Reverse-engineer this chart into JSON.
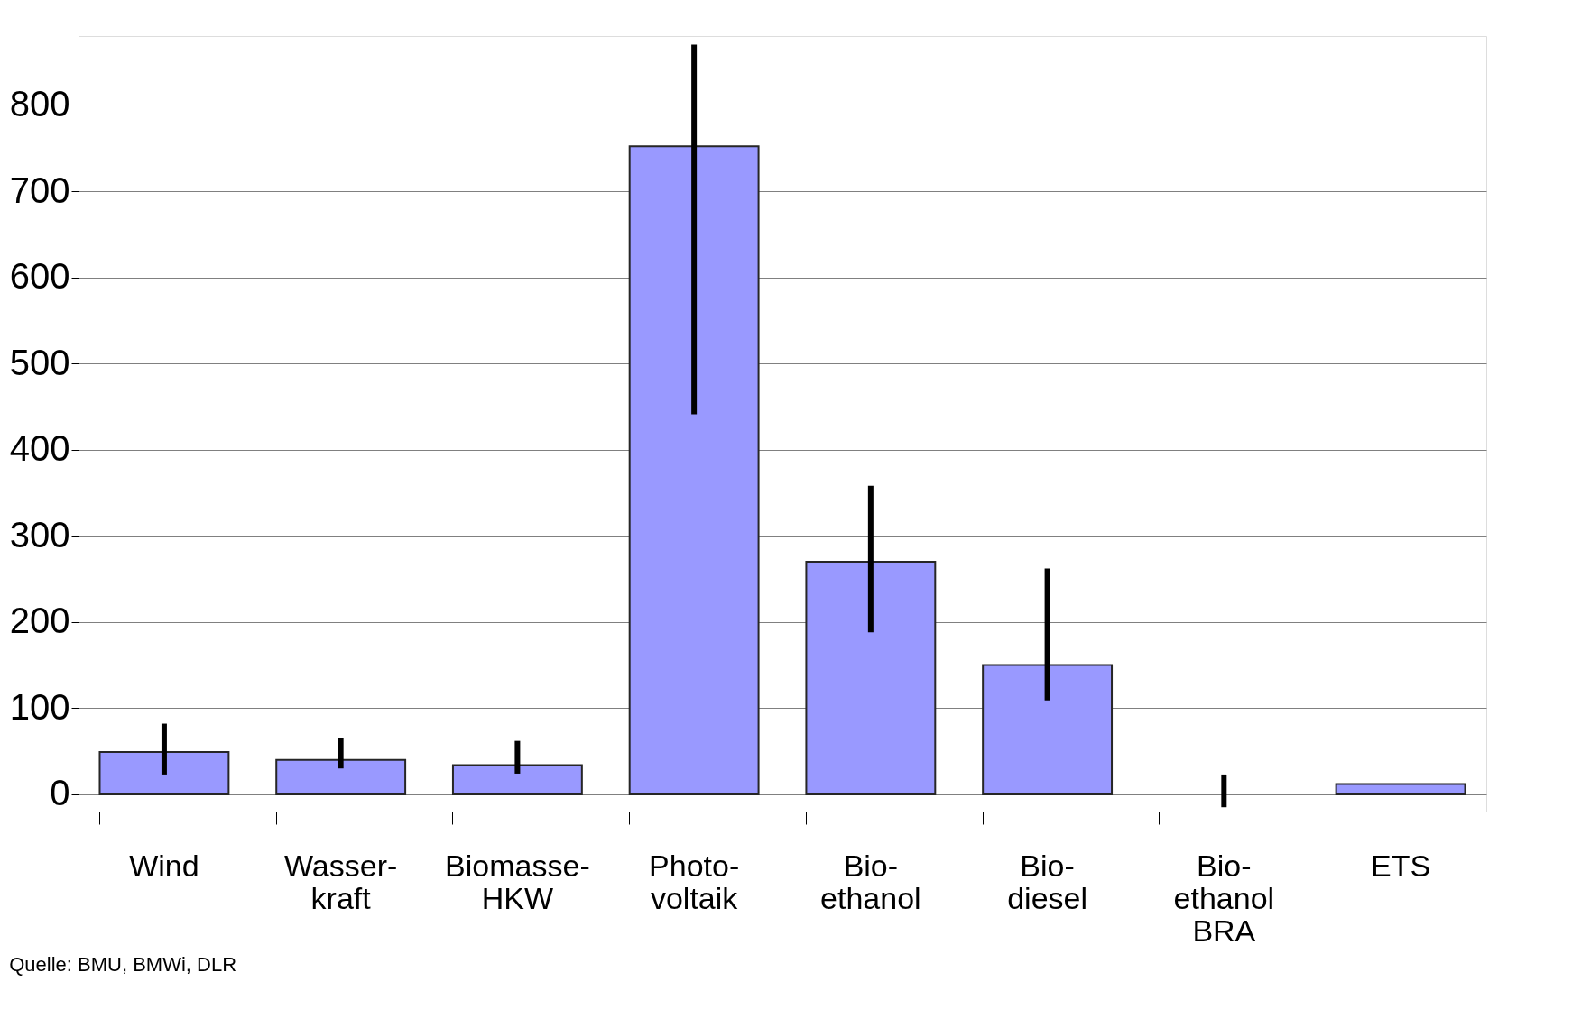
{
  "chart_data": {
    "type": "bar",
    "categories": [
      "Wind",
      "Wasser-\nkraft",
      "Biomasse-\nHKW",
      "Photo-\nvoltaik",
      "Bio-\nethanol",
      "Bio-\ndiesel",
      "Bio-\nethanol\nBRA",
      "ETS"
    ],
    "values": [
      49,
      40,
      34,
      752,
      270,
      150,
      0,
      12
    ],
    "errors": [
      [
        23,
        82
      ],
      [
        30,
        65
      ],
      [
        24,
        62
      ],
      [
        441,
        870
      ],
      [
        188,
        358
      ],
      [
        109,
        262
      ],
      [
        -15,
        23
      ],
      null
    ],
    "color": "#9999ff",
    "ylim": [
      -20,
      880
    ],
    "yticks": [
      0,
      100,
      200,
      300,
      400,
      500,
      600,
      700,
      800
    ],
    "grid": "y",
    "annotations": [
      "Quelle: BMU, BMWi, DLR"
    ]
  }
}
